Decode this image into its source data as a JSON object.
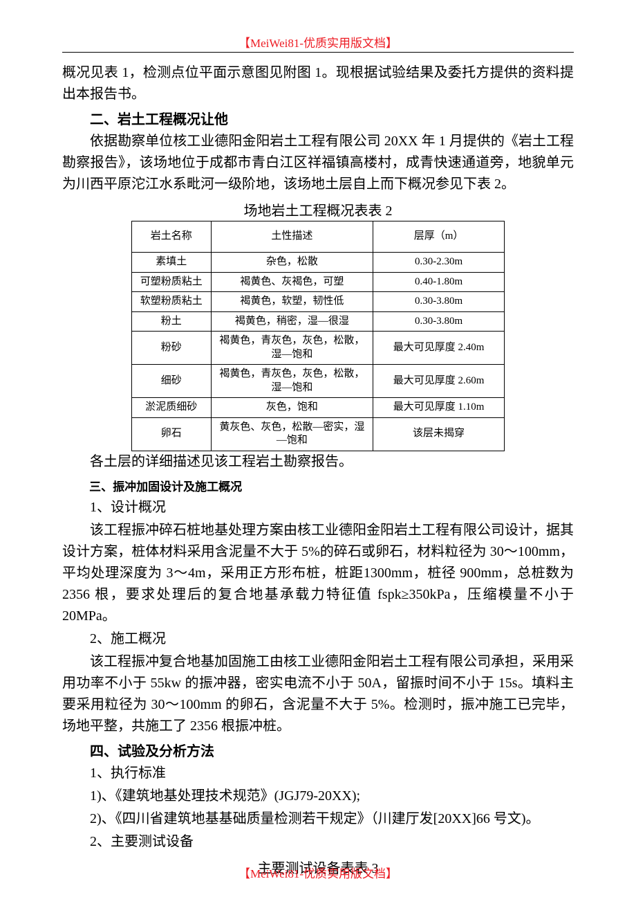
{
  "header": "【MeiWei81-优质实用版文档】",
  "footer": "【MeiWei81-优质实用版文档】",
  "p_intro": "概况见表 1，检测点位平面示意图见附图 1。现根据试验结果及委托方提供的资料提出本报告书。",
  "sec2_title": "二、岩土工程概况让他",
  "sec2_p1": "依据勘察单位核工业德阳金阳岩土工程有限公司 20XX 年 1 月提供的《岩土工程勘察报告》，该场地位于成都市青白江区祥福镇高楼村，成青快速通道旁，地貌单元为川西平原沱江水系毗河一级阶地，该场地土层自上而下概况参见下表 2。",
  "table2_caption": "场地岩土工程概况表表 2",
  "table2": {
    "columns": [
      "岩土名称",
      "土性描述",
      "层厚（m）"
    ],
    "rows": [
      [
        "素填土",
        "杂色，松散",
        "0.30-2.30m"
      ],
      [
        "可塑粉质粘土",
        "褐黄色、灰褐色，可塑",
        "0.40-1.80m"
      ],
      [
        "软塑粉质粘土",
        "褐黄色，软塑，韧性低",
        "0.30-3.80m"
      ],
      [
        "粉土",
        "褐黄色，稍密，湿—很湿",
        "0.30-3.80m"
      ],
      [
        "粉砂",
        "褐黄色，青灰色，灰色，松散，湿—饱和",
        "最大可见厚度 2.40m"
      ],
      [
        "细砂",
        "褐黄色，青灰色，灰色，松散，湿—饱和",
        "最大可见厚度 2.60m"
      ],
      [
        "淤泥质细砂",
        "灰色，饱和",
        "最大可见厚度 1.10m"
      ],
      [
        "卵石",
        "黄灰色、灰色，松散—密实，湿—饱和",
        "该层未揭穿"
      ]
    ]
  },
  "sec2_p2": "各土层的详细描述见该工程岩土勘察报告。",
  "sec3_title": "三、振冲加固设计及施工概况",
  "sec3_1_label": "1、设计概况",
  "sec3_1_p": "该工程振冲碎石桩地基处理方案由核工业德阳金阳岩土工程有限公司设计，据其设计方案，桩体材料采用含泥量不大于 5%的碎石或卵石，材料粒径为 30～100mm，平均处理深度为 3～4m，采用正方形布桩，桩距1300mm，桩径 900mm，总桩数为 2356 根，要求处理后的复合地基承载力特征值 fspk≥350kPa，压缩模量不小于 20MPa。",
  "sec3_2_label": "2、施工概况",
  "sec3_2_p": "该工程振冲复合地基加固施工由核工业德阳金阳岩土工程有限公司承担，采用采用功率不小于 55kw 的振冲器，密实电流不小于 50A，留振时间不小于 15s。填料主要采用粒径为 30～100mm 的卵石，含泥量不大于 5%。检测时，振冲施工已完毕，场地平整，共施工了 2356 根振冲桩。",
  "sec4_title": "四、试验及分析方法",
  "sec4_1_label": "1、执行标准",
  "sec4_1_item1": "1)、《建筑地基处理技术规范》(JGJ79-20XX);",
  "sec4_1_item2": "2)、《四川省建筑地基基础质量检测若干规定》（川建厅发[20XX]66 号文)。",
  "sec4_2_label": "2、主要测试设备",
  "table3_caption": "主要测试设备表表 3"
}
